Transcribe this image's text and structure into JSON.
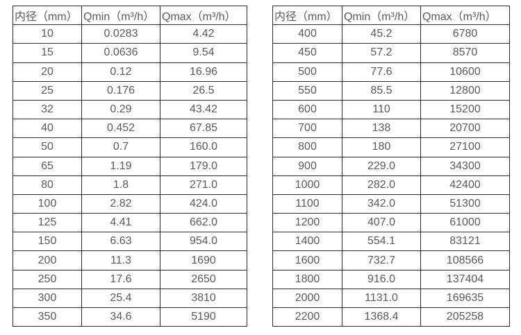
{
  "colors": {
    "background": "#ffffff",
    "border": "#2b2b2b",
    "text": "#595959"
  },
  "tables": [
    {
      "name": "small-diameter-flow-table",
      "headers": [
        "内径（mm）",
        "Qmin（m³/h）",
        "Qmax（m³/h）"
      ],
      "rows": [
        [
          "10",
          "0.0283",
          "4.42"
        ],
        [
          "15",
          "0.0636",
          "9.54"
        ],
        [
          "20",
          "0.12",
          "16.96"
        ],
        [
          "25",
          "0.176",
          "26.5"
        ],
        [
          "32",
          "0.29",
          "43.42"
        ],
        [
          "40",
          "0.452",
          "67.85"
        ],
        [
          "50",
          "0.7",
          "160.0"
        ],
        [
          "65",
          "1.19",
          "179.0"
        ],
        [
          "80",
          "1.8",
          "271.0"
        ],
        [
          "100",
          "2.82",
          "424.0"
        ],
        [
          "125",
          "4.41",
          "662.0"
        ],
        [
          "150",
          "6.63",
          "954.0"
        ],
        [
          "200",
          "11.3",
          "1690"
        ],
        [
          "250",
          "17.6",
          "2650"
        ],
        [
          "300",
          "25.4",
          "3810"
        ],
        [
          "350",
          "34.6",
          "5190"
        ]
      ]
    },
    {
      "name": "large-diameter-flow-table",
      "headers": [
        "内径（mm）",
        "Qmin（m³/h）",
        "Qmax（m³/h）"
      ],
      "rows": [
        [
          "400",
          "45.2",
          "6780"
        ],
        [
          "450",
          "57.2",
          "8570"
        ],
        [
          "500",
          "77.6",
          "10600"
        ],
        [
          "550",
          "85.5",
          "12800"
        ],
        [
          "600",
          "110",
          "15200"
        ],
        [
          "700",
          "138",
          "20700"
        ],
        [
          "800",
          "180",
          "27100"
        ],
        [
          "900",
          "229.0",
          "34300"
        ],
        [
          "1000",
          "282.0",
          "42400"
        ],
        [
          "1100",
          "342.0",
          "51300"
        ],
        [
          "1200",
          "407.0",
          "61000"
        ],
        [
          "1400",
          "554.1",
          "83121"
        ],
        [
          "1600",
          "732.7",
          "108566"
        ],
        [
          "1800",
          "916.0",
          "137404"
        ],
        [
          "2000",
          "1131.0",
          "169635"
        ],
        [
          "2200",
          "1368.4",
          "205258"
        ]
      ]
    }
  ]
}
